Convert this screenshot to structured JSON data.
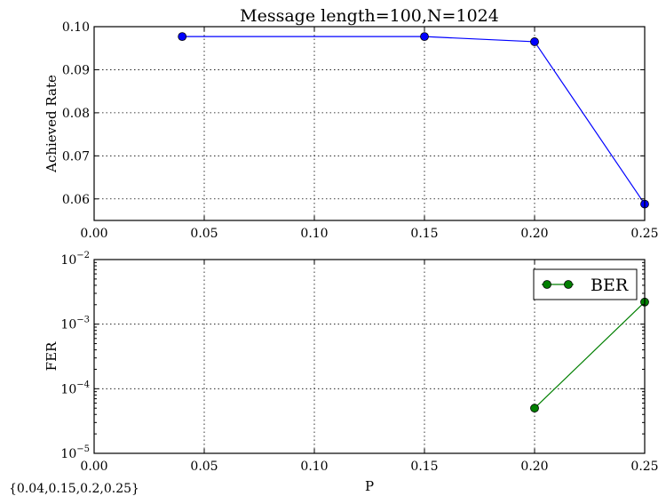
{
  "chart_data": [
    {
      "type": "line",
      "title": "Message length=100,N=1024",
      "xlabel": "",
      "ylabel": "Achieved Rate",
      "xlim": [
        0.0,
        0.25
      ],
      "ylim": [
        0.055,
        0.1
      ],
      "xticks": [
        "0.00",
        "0.05",
        "0.10",
        "0.15",
        "0.20",
        "0.25"
      ],
      "yticks": [
        "0.06",
        "0.07",
        "0.08",
        "0.09",
        "0.10"
      ],
      "grid": true,
      "series": [
        {
          "color": "#0000ff",
          "marker": "circle",
          "x": [
            0.04,
            0.15,
            0.2,
            0.25
          ],
          "y": [
            0.0977,
            0.0977,
            0.0965,
            0.0588
          ]
        }
      ]
    },
    {
      "type": "line",
      "title": "",
      "xlabel": "P",
      "ylabel": "FER",
      "yscale": "log",
      "xlim": [
        0.0,
        0.25
      ],
      "ylim": [
        1e-05,
        0.01
      ],
      "xticks": [
        "0.00",
        "0.05",
        "0.10",
        "0.15",
        "0.20",
        "0.25"
      ],
      "yticks": [
        {
          "base": "10",
          "exp": "−5"
        },
        {
          "base": "10",
          "exp": "−4"
        },
        {
          "base": "10",
          "exp": "−3"
        },
        {
          "base": "10",
          "exp": "−2"
        }
      ],
      "grid": true,
      "legend_position": "top-right",
      "series": [
        {
          "name": "BER",
          "color": "#007f00",
          "marker": "circle",
          "x": [
            0.2,
            0.25
          ],
          "y": [
            5e-05,
            0.0022
          ]
        }
      ]
    }
  ],
  "footnote": "{0.04,0.15,0.2,0.25}"
}
